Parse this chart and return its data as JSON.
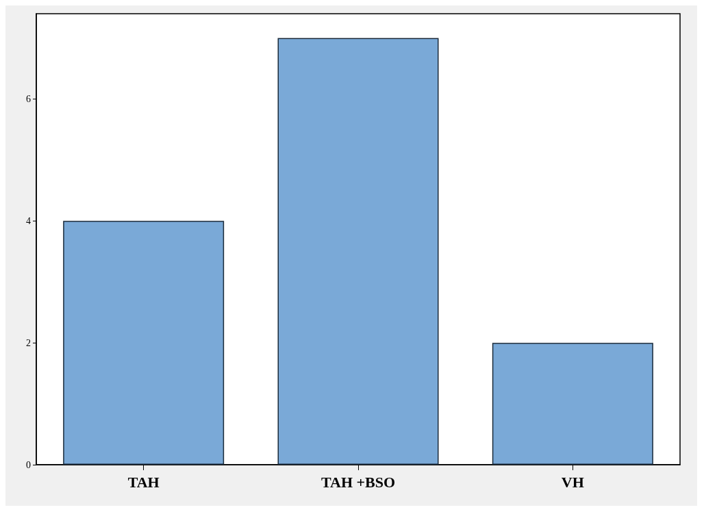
{
  "chart_data": {
    "type": "bar",
    "categories": [
      "TAH",
      "TAH +BSO",
      "VH"
    ],
    "values": [
      4,
      7,
      2
    ],
    "color": "#7aa9d7",
    "ylim": [
      0,
      7.4
    ],
    "yticks": [
      0,
      2,
      4,
      6
    ],
    "grid": false
  }
}
